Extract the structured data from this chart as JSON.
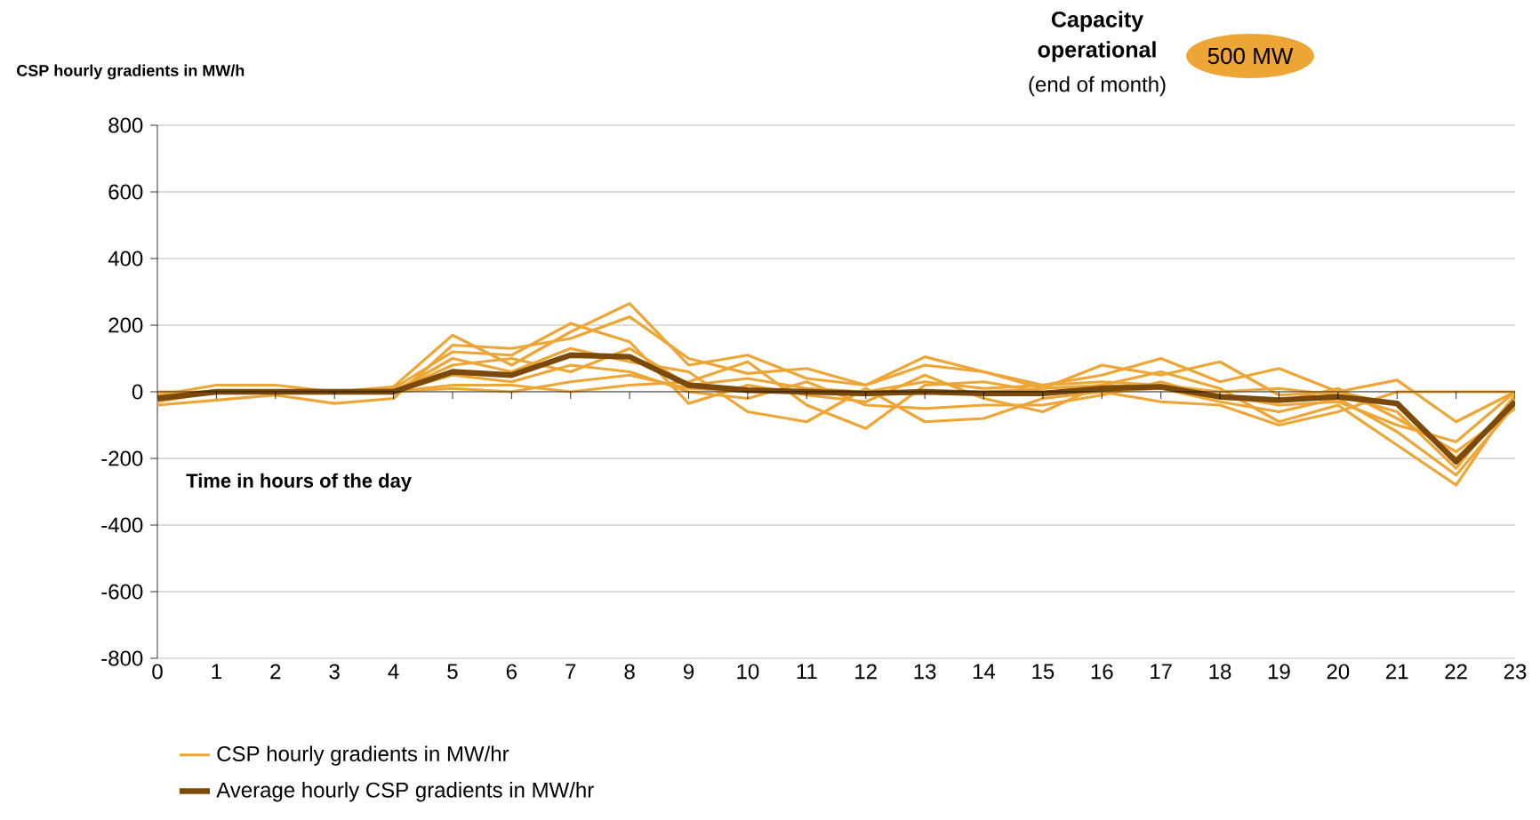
{
  "chart_data": {
    "type": "line",
    "title": "Capacity operational",
    "subtitle": "(end of month)",
    "xlabel": "Time in hours of the day",
    "ylabel": "CSP hourly gradients in MW/h",
    "annotations": [
      "500 MW"
    ],
    "x": [
      0,
      1,
      2,
      3,
      4,
      5,
      6,
      7,
      8,
      9,
      10,
      11,
      12,
      13,
      14,
      15,
      16,
      17,
      18,
      19,
      20,
      21,
      22,
      23
    ],
    "xlim": [
      0,
      23
    ],
    "xticks": [
      0,
      1,
      2,
      3,
      4,
      5,
      6,
      7,
      8,
      9,
      10,
      11,
      12,
      13,
      14,
      15,
      16,
      17,
      18,
      19,
      20,
      21,
      22,
      23
    ],
    "ylim": [
      -800,
      800
    ],
    "yticks": [
      -800,
      -600,
      -400,
      -200,
      0,
      200,
      400,
      600,
      800
    ],
    "grid": "y",
    "legend": "bottom",
    "marker": "none",
    "series": [
      {
        "name": "CSP hourly gradients in MW/hr",
        "color": "#eda535",
        "values": [
          -10,
          20,
          20,
          0,
          15,
          170,
          80,
          180,
          265,
          80,
          110,
          40,
          20,
          105,
          60,
          10,
          80,
          50,
          90,
          -10,
          0,
          35,
          -90,
          0
        ]
      },
      {
        "color": "#eda535",
        "values": [
          -40,
          -25,
          -10,
          -35,
          -20,
          140,
          130,
          160,
          225,
          100,
          55,
          70,
          20,
          80,
          60,
          20,
          50,
          100,
          30,
          70,
          0,
          -40,
          -200,
          -30
        ]
      },
      {
        "color": "#eda535",
        "values": [
          -30,
          0,
          0,
          0,
          10,
          120,
          110,
          205,
          150,
          -35,
          20,
          -10,
          -30,
          50,
          -20,
          -60,
          20,
          60,
          10,
          -90,
          -40,
          -160,
          -280,
          -20
        ]
      },
      {
        "color": "#eda535",
        "values": [
          -20,
          0,
          0,
          0,
          0,
          100,
          60,
          130,
          90,
          60,
          -60,
          -90,
          10,
          -90,
          -80,
          -20,
          0,
          10,
          -30,
          -60,
          -20,
          -120,
          -250,
          -40
        ]
      },
      {
        "color": "#eda535",
        "values": [
          0,
          0,
          0,
          0,
          0,
          20,
          20,
          0,
          20,
          30,
          90,
          -40,
          -110,
          20,
          30,
          0,
          0,
          -30,
          -40,
          -100,
          -60,
          0,
          0,
          0
        ]
      },
      {
        "color": "#eda535",
        "values": [
          -20,
          0,
          0,
          0,
          0,
          50,
          30,
          80,
          60,
          0,
          -20,
          30,
          -40,
          -50,
          -40,
          -40,
          -10,
          30,
          -20,
          -30,
          10,
          -80,
          -180,
          -50
        ]
      },
      {
        "color": "#eda535",
        "values": [
          -10,
          0,
          0,
          0,
          0,
          80,
          100,
          60,
          130,
          20,
          40,
          10,
          0,
          30,
          10,
          20,
          30,
          20,
          0,
          10,
          -10,
          -60,
          -230,
          -10
        ]
      },
      {
        "color": "#eda535",
        "values": [
          -20,
          0,
          0,
          0,
          0,
          10,
          0,
          30,
          50,
          10,
          0,
          0,
          -10,
          0,
          0,
          10,
          20,
          10,
          -10,
          -40,
          -30,
          -100,
          -150,
          0
        ]
      },
      {
        "name": "Average hourly CSP gradients in MW/hr",
        "color": "#7b4a0a",
        "values": [
          -20,
          0,
          0,
          0,
          0,
          60,
          50,
          110,
          105,
          20,
          5,
          0,
          -5,
          0,
          -5,
          -5,
          10,
          15,
          -15,
          -25,
          -15,
          -35,
          -210,
          -30
        ]
      }
    ]
  }
}
